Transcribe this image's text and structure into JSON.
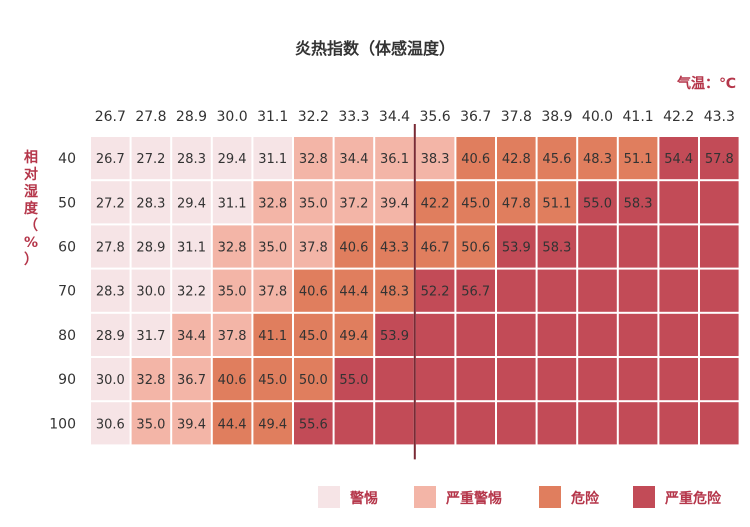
{
  "chart_data": {
    "type": "heatmap",
    "title": "炎热指数（体感温度）",
    "xlabel": "气温：℃",
    "ylabel_chars": [
      "相",
      "对",
      "湿",
      "度",
      "（",
      "%",
      "）"
    ],
    "x": [
      "26.7",
      "27.8",
      "28.9",
      "30.0",
      "31.1",
      "32.2",
      "33.3",
      "34.4",
      "35.6",
      "36.7",
      "37.8",
      "38.9",
      "40.0",
      "41.1",
      "42.2",
      "43.3"
    ],
    "y": [
      "40",
      "50",
      "60",
      "70",
      "80",
      "90",
      "100"
    ],
    "values": [
      [
        "26.7",
        "27.2",
        "28.3",
        "29.4",
        "31.1",
        "32.8",
        "34.4",
        "36.1",
        "38.3",
        "40.6",
        "42.8",
        "45.6",
        "48.3",
        "51.1",
        "54.4",
        "57.8"
      ],
      [
        "27.2",
        "28.3",
        "29.4",
        "31.1",
        "32.8",
        "35.0",
        "37.2",
        "39.4",
        "42.2",
        "45.0",
        "47.8",
        "51.1",
        "55.0",
        "58.3",
        "",
        ""
      ],
      [
        "27.8",
        "28.9",
        "31.1",
        "32.8",
        "35.0",
        "37.8",
        "40.6",
        "43.3",
        "46.7",
        "50.6",
        "53.9",
        "58.3",
        "",
        "",
        "",
        ""
      ],
      [
        "28.3",
        "30.0",
        "32.2",
        "35.0",
        "37.8",
        "40.6",
        "44.4",
        "48.3",
        "52.2",
        "56.7",
        "",
        "",
        "",
        "",
        "",
        ""
      ],
      [
        "28.9",
        "31.7",
        "34.4",
        "37.8",
        "41.1",
        "45.0",
        "49.4",
        "53.9",
        "",
        "",
        "",
        "",
        "",
        "",
        "",
        ""
      ],
      [
        "30.0",
        "32.8",
        "36.7",
        "40.6",
        "45.0",
        "50.0",
        "55.0",
        "",
        "",
        "",
        "",
        "",
        "",
        "",
        "",
        ""
      ],
      [
        "30.6",
        "35.0",
        "39.4",
        "44.4",
        "49.4",
        "55.6",
        "",
        "",
        "",
        "",
        "",
        "",
        "",
        "",
        "",
        ""
      ]
    ],
    "levels": [
      [
        0,
        0,
        0,
        0,
        0,
        1,
        1,
        1,
        1,
        2,
        2,
        2,
        2,
        2,
        3,
        3
      ],
      [
        0,
        0,
        0,
        0,
        1,
        1,
        1,
        1,
        2,
        2,
        2,
        2,
        3,
        3,
        3,
        3
      ],
      [
        0,
        0,
        0,
        1,
        1,
        1,
        2,
        2,
        2,
        2,
        3,
        3,
        3,
        3,
        3,
        3
      ],
      [
        0,
        0,
        0,
        1,
        1,
        2,
        2,
        2,
        3,
        3,
        3,
        3,
        3,
        3,
        3,
        3
      ],
      [
        0,
        0,
        1,
        1,
        2,
        2,
        2,
        3,
        3,
        3,
        3,
        3,
        3,
        3,
        3,
        3
      ],
      [
        0,
        1,
        1,
        2,
        2,
        2,
        3,
        3,
        3,
        3,
        3,
        3,
        3,
        3,
        3,
        3
      ],
      [
        0,
        1,
        1,
        2,
        2,
        3,
        3,
        3,
        3,
        3,
        3,
        3,
        3,
        3,
        3,
        3
      ]
    ],
    "legend": [
      {
        "name": "警惕",
        "color": "#f6e4e6"
      },
      {
        "name": "严重警惕",
        "color": "#f3b5a7"
      },
      {
        "name": "危险",
        "color": "#e07e5e"
      },
      {
        "name": "严重危险",
        "color": "#c24b57"
      }
    ],
    "divider_after_x": "34.4",
    "legend_position": "bottom-right",
    "grid": true
  }
}
